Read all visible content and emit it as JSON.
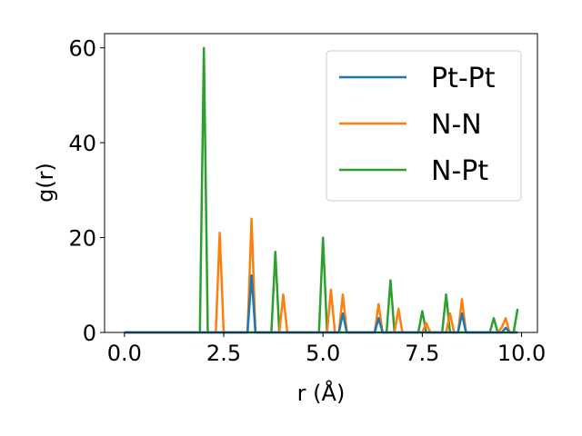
{
  "chart_data": {
    "type": "line",
    "xlabel": "r (Å)",
    "ylabel": "g(r)",
    "xlim": [
      -0.5,
      10.4
    ],
    "ylim": [
      0,
      63
    ],
    "xticks": [
      "0.0",
      "2.5",
      "5.0",
      "7.5",
      "10.0"
    ],
    "xtick_values": [
      0,
      2.5,
      5,
      7.5,
      10
    ],
    "yticks": [
      "0",
      "20",
      "40",
      "60"
    ],
    "ytick_values": [
      0,
      20,
      40,
      60
    ],
    "grid": false,
    "legend_position": "top-right",
    "series": [
      {
        "name": "Pt-Pt",
        "color": "#1f77b4",
        "x": [
          0,
          3.1,
          3.2,
          3.3,
          5.4,
          5.5,
          5.6,
          6.3,
          6.4,
          6.5,
          8.4,
          8.5,
          8.6,
          9.5,
          9.6,
          9.7,
          9.9
        ],
        "y": [
          0,
          0,
          12,
          0,
          0,
          4,
          0,
          0,
          3,
          0,
          0,
          4,
          0,
          0,
          1,
          0,
          0
        ]
      },
      {
        "name": "N-N",
        "color": "#ff7f0e",
        "x": [
          0,
          2.3,
          2.4,
          2.5,
          3.1,
          3.2,
          3.3,
          3.9,
          4.0,
          4.1,
          5.1,
          5.2,
          5.3,
          5.4,
          5.5,
          5.6,
          6.3,
          6.4,
          6.5,
          6.8,
          6.9,
          7.0,
          7.5,
          7.6,
          7.7,
          8.1,
          8.2,
          8.3,
          8.4,
          8.5,
          8.6,
          9.4,
          9.5,
          9.6,
          9.7,
          9.9
        ],
        "y": [
          0,
          0,
          21,
          0,
          0,
          24,
          0,
          0,
          8,
          0,
          0,
          9,
          0,
          0,
          8,
          0,
          0,
          6,
          0,
          0,
          5,
          0,
          0,
          2,
          0,
          0,
          4,
          0,
          0,
          7,
          0,
          0,
          1,
          3,
          0,
          0
        ]
      },
      {
        "name": "N-Pt",
        "color": "#2ca02c",
        "x": [
          0,
          1.9,
          2.0,
          2.1,
          3.7,
          3.8,
          3.9,
          4.9,
          5.0,
          5.1,
          6.6,
          6.7,
          6.8,
          7.4,
          7.5,
          7.6,
          8.0,
          8.1,
          8.2,
          9.2,
          9.3,
          9.4,
          9.8,
          9.9
        ],
        "y": [
          0,
          0,
          60,
          0,
          0,
          17,
          0,
          0,
          20,
          0,
          0,
          11,
          0,
          0,
          4.5,
          0,
          0,
          8,
          0,
          0,
          3,
          0,
          0,
          5
        ]
      }
    ]
  }
}
